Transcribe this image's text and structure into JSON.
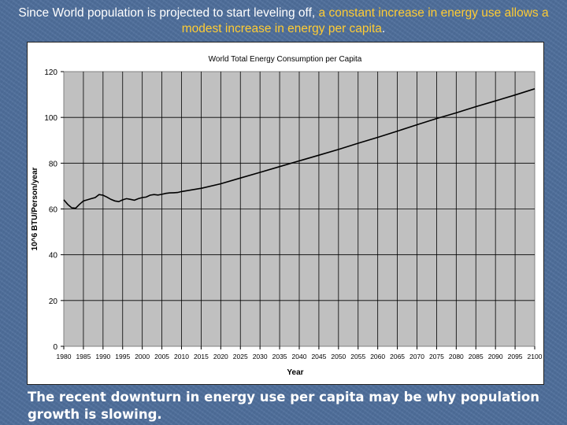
{
  "caption": {
    "part1": "Since World population is projected to start leveling off, ",
    "part2": "a constant increase in energy use allows a modest increase in energy per capita",
    "part3": "."
  },
  "footer": "The recent downturn in energy use per capita may be why population growth is slowing.",
  "colors": {
    "background": "#4f6f9c",
    "caption_highlight": "#ffcc33",
    "plot_area": "#c0c0c0",
    "line": "#000000"
  },
  "chart_data": {
    "type": "line",
    "title": "World Total Energy Consumption per Capita",
    "xlabel": "Year",
    "ylabel": "10^6 BTU/Person/year",
    "xlim": [
      1980,
      2100
    ],
    "ylim": [
      0,
      120
    ],
    "y_ticks": [
      0,
      20,
      40,
      60,
      80,
      100,
      120
    ],
    "x_ticks": [
      "1980",
      "1985",
      "1990",
      "1995",
      "2000",
      "2005",
      "2010",
      "2015",
      "2020",
      "2025",
      "2030",
      "2035",
      "2040",
      "2045",
      "2050",
      "2055",
      "2060",
      "2065",
      "2070",
      "2075",
      "2080",
      "2085",
      "2090",
      "2095",
      "2100"
    ],
    "grid": true,
    "series": [
      {
        "x": [
          1980,
          1981,
          1982,
          1983,
          1984,
          1985,
          1986,
          1987,
          1988,
          1989,
          1990,
          1991,
          1992,
          1993,
          1994,
          1995,
          1996,
          1997,
          1998,
          1999,
          2000,
          2001,
          2002,
          2003,
          2004,
          2005,
          2006,
          2007,
          2008,
          2009,
          2010,
          2015,
          2020,
          2025,
          2030,
          2035,
          2040,
          2045,
          2050,
          2055,
          2060,
          2065,
          2070,
          2075,
          2080,
          2085,
          2090,
          2095,
          2100
        ],
        "values": [
          64,
          62,
          60.5,
          60.3,
          62,
          63.5,
          64,
          64.5,
          65,
          66.3,
          66,
          65.2,
          64.2,
          63.5,
          63.2,
          64,
          64.5,
          64.2,
          63.8,
          64.5,
          65,
          65.2,
          66,
          66.3,
          66.1,
          66.4,
          66.8,
          67,
          67.1,
          67.2,
          67.6,
          69,
          71,
          73.5,
          76,
          78.5,
          81,
          83.5,
          86,
          88.7,
          91.3,
          94,
          96.8,
          99.5,
          102,
          104.7,
          107.2,
          109.8,
          112.5
        ]
      }
    ]
  }
}
